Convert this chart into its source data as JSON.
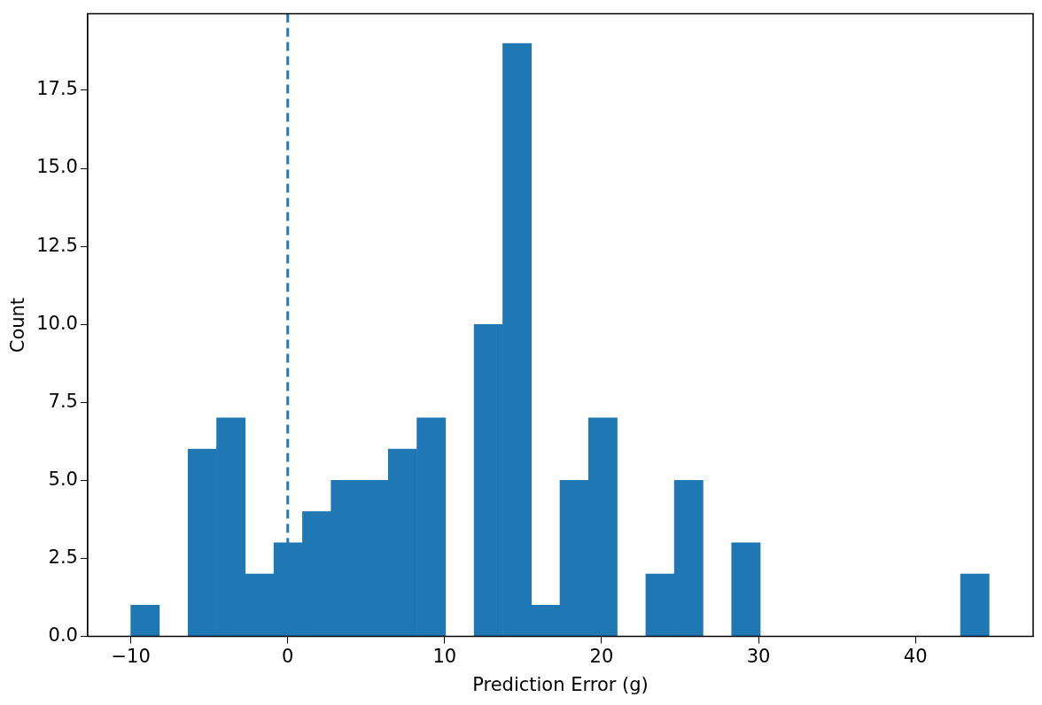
{
  "chart_data": {
    "type": "histogram",
    "xlabel": "Prediction Error (g)",
    "ylabel": "Count",
    "color": "#1f77b4",
    "bins": [
      -10,
      -8.18,
      -6.35,
      -4.53,
      -2.71,
      -0.88,
      0.94,
      2.76,
      4.59,
      6.41,
      8.23,
      10.06,
      11.88,
      13.7,
      15.53,
      17.35,
      19.17,
      20.99,
      22.82,
      24.64,
      26.46,
      28.29,
      30.11,
      31.93,
      33.76,
      35.58,
      37.4,
      39.22,
      41.05,
      42.87,
      44.7
    ],
    "values": [
      1,
      0,
      6,
      7,
      2,
      3,
      4,
      5,
      5,
      6,
      7,
      0,
      10,
      19,
      1,
      5,
      7,
      0,
      2,
      5,
      0,
      3,
      0,
      0,
      0,
      0,
      0,
      0,
      0,
      2
    ],
    "xlim": [
      -12.75,
      47.5
    ],
    "xticks": [
      -10,
      0,
      10,
      20,
      30,
      40
    ],
    "ylim": [
      0,
      19.95
    ],
    "yticks": [
      {
        "value": 0,
        "label": "0.0"
      },
      2.5,
      {
        "value": 5,
        "label": "5.0"
      },
      7.5,
      {
        "value": 10,
        "label": "10.0"
      },
      12.5,
      {
        "value": 15,
        "label": "15.0"
      },
      17.5
    ],
    "ref_lines": [
      {
        "axis": "x",
        "value": 0,
        "color": "#1f77b4",
        "line_style": "dashed"
      }
    ],
    "grid": false,
    "legend": false
  }
}
